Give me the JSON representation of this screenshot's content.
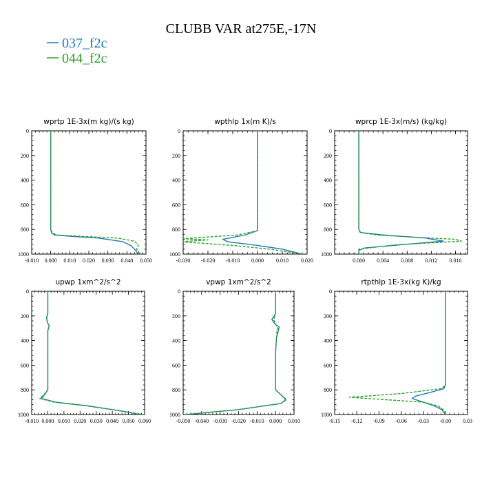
{
  "title": "CLUBB VAR at275E,-17N",
  "legend": [
    {
      "label": "037_f2c",
      "color": "#1f77b4",
      "dash": false
    },
    {
      "label": "044_f2c",
      "color": "#2ca02c",
      "dash": true
    }
  ],
  "chart_data": [
    {
      "type": "line",
      "title": "wprtp  1E-3x(m kg)/(s kg)",
      "xlim": [
        -0.01,
        0.05
      ],
      "ylim": [
        0,
        1000
      ],
      "y_inverted": true,
      "xticks": [
        "-0.010",
        "0.000",
        "0.010",
        "0.020",
        "0.030",
        "0.040",
        "0.050"
      ],
      "yticks": [
        "0",
        "200",
        "400",
        "600",
        "800",
        "1000"
      ],
      "series": [
        {
          "name": "037_f2c",
          "x": [
            0.0,
            0.0,
            0.0,
            0.0,
            0.0005,
            0.002,
            0.01,
            0.025,
            0.038,
            0.042,
            0.044,
            0.046
          ],
          "y": [
            0,
            200,
            500,
            800,
            830,
            845,
            855,
            870,
            900,
            930,
            960,
            1000
          ]
        },
        {
          "name": "044_f2c",
          "x": [
            0.0,
            0.0,
            0.0,
            0.0,
            0.001,
            0.003,
            0.015,
            0.035,
            0.044,
            0.046,
            0.045,
            0.047
          ],
          "y": [
            0,
            200,
            500,
            800,
            830,
            845,
            855,
            870,
            895,
            930,
            960,
            1000
          ]
        }
      ]
    },
    {
      "type": "line",
      "title": "wpthlp  1x(m K)/s",
      "xlim": [
        -0.03,
        0.02
      ],
      "ylim": [
        0,
        1000
      ],
      "y_inverted": true,
      "xticks": [
        "-0.030",
        "-0.020",
        "-0.010",
        "0.000",
        "0.010",
        "0.020"
      ],
      "yticks": [
        "0",
        "200",
        "400",
        "600",
        "800",
        "1000"
      ],
      "series": [
        {
          "name": "037_f2c",
          "x": [
            0.0,
            0.0,
            0.0,
            0.0,
            0.0,
            -0.005,
            -0.014,
            -0.012,
            0.0,
            0.01,
            0.018
          ],
          "y": [
            0,
            200,
            500,
            790,
            810,
            845,
            880,
            900,
            930,
            960,
            1000
          ]
        },
        {
          "name": "044_f2c",
          "x": [
            0.0,
            0.0,
            0.0,
            0.0,
            0.0,
            -0.008,
            -0.03,
            -0.02,
            -0.031,
            -0.01,
            0.005,
            0.018
          ],
          "y": [
            0,
            200,
            500,
            790,
            810,
            845,
            875,
            885,
            900,
            930,
            960,
            1000
          ]
        }
      ]
    },
    {
      "type": "line",
      "title": "wprcp  1E-3x(m/s) (kg/kg)",
      "xlim": [
        -0.004,
        0.018
      ],
      "ylim": [
        0,
        1000
      ],
      "y_inverted": true,
      "xticks": [
        "0.000",
        "0.004",
        "0.008",
        "0.012",
        "0.016"
      ],
      "yticks": [
        "0",
        "200",
        "400",
        "600",
        "800",
        "1000"
      ],
      "series": [
        {
          "name": "037_f2c",
          "x": [
            0.0,
            0.0,
            0.0,
            0.0,
            0.0003,
            0.004,
            0.011,
            0.014,
            0.008,
            0.001,
            0.0,
            0.0
          ],
          "y": [
            0,
            200,
            500,
            800,
            825,
            845,
            870,
            895,
            920,
            950,
            970,
            1000
          ]
        },
        {
          "name": "044_f2c",
          "x": [
            0.0,
            0.0,
            0.0,
            0.0,
            0.0002,
            0.003,
            0.01,
            0.016,
            0.017,
            0.006,
            0.0,
            0.0
          ],
          "y": [
            0,
            200,
            500,
            800,
            825,
            845,
            865,
            880,
            895,
            925,
            960,
            1000
          ]
        }
      ]
    },
    {
      "type": "line",
      "title": "upwp  1xm^2/s^2",
      "xlim": [
        -0.01,
        0.06
      ],
      "ylim": [
        0,
        1000
      ],
      "y_inverted": true,
      "xticks": [
        "-0.010",
        "0.000",
        "0.010",
        "0.020",
        "0.030",
        "0.040",
        "0.050",
        "0.060"
      ],
      "yticks": [
        "0",
        "200",
        "400",
        "600",
        "800",
        "1000"
      ],
      "series": [
        {
          "name": "037_f2c",
          "x": [
            0.0,
            0.0,
            0.0,
            -0.0007,
            0.0,
            0.0008,
            0.0,
            0.0,
            0.0,
            0.0,
            -0.002,
            -0.004,
            0.005,
            0.025,
            0.045,
            0.057
          ],
          "y": [
            0,
            100,
            180,
            220,
            260,
            280,
            320,
            500,
            700,
            800,
            840,
            870,
            900,
            930,
            970,
            1000
          ]
        },
        {
          "name": "044_f2c",
          "x": [
            0.0,
            0.0,
            0.0,
            -0.0009,
            0.0,
            0.001,
            0.0,
            0.0,
            0.0,
            0.0,
            -0.0025,
            -0.005,
            0.004,
            0.024,
            0.045,
            0.059
          ],
          "y": [
            0,
            100,
            180,
            220,
            260,
            280,
            320,
            500,
            700,
            800,
            840,
            870,
            900,
            930,
            970,
            1000
          ]
        }
      ]
    },
    {
      "type": "line",
      "title": "vpwp  1xm^2/s^2",
      "xlim": [
        -0.05,
        0.01
      ],
      "ylim": [
        0,
        1000
      ],
      "y_inverted": true,
      "xticks": [
        "-0.050",
        "-0.040",
        "-0.030",
        "-0.020",
        "-0.010",
        "0.000",
        "0.010"
      ],
      "yticks": [
        "0",
        "200",
        "400",
        "600",
        "800",
        "1000"
      ],
      "series": [
        {
          "name": "037_f2c",
          "x": [
            0.0,
            0.0,
            0.0,
            -0.002,
            0.0,
            0.002,
            0.0005,
            0.0,
            0.0,
            0.0,
            0.003,
            0.0055,
            0.003,
            -0.02,
            -0.048
          ],
          "y": [
            0,
            100,
            180,
            230,
            270,
            290,
            380,
            500,
            700,
            800,
            840,
            880,
            910,
            960,
            1000
          ]
        },
        {
          "name": "044_f2c",
          "x": [
            0.0,
            0.0,
            0.0,
            -0.001,
            0.0,
            0.001,
            0.0005,
            0.0,
            0.0,
            0.0,
            0.003,
            0.006,
            0.003,
            -0.02,
            -0.049
          ],
          "y": [
            0,
            100,
            180,
            230,
            270,
            290,
            380,
            500,
            700,
            800,
            840,
            880,
            910,
            960,
            1000
          ]
        }
      ]
    },
    {
      "type": "line",
      "title": "rtpthlp  1E-3x(kg K)/kg",
      "xlim": [
        -0.15,
        0.03
      ],
      "ylim": [
        0,
        1000
      ],
      "y_inverted": true,
      "xticks": [
        "-0.15",
        "-0.12",
        "-0.09",
        "-0.06",
        "-0.03",
        "-0.00",
        "0.03"
      ],
      "yticks": [
        "0",
        "200",
        "400",
        "600",
        "800",
        "1000"
      ],
      "series": [
        {
          "name": "037_f2c",
          "x": [
            0.0,
            0.0,
            0.0,
            0.0,
            -0.002,
            -0.02,
            -0.04,
            -0.045,
            -0.03,
            -0.015,
            -0.005,
            0.0
          ],
          "y": [
            0,
            200,
            500,
            760,
            790,
            820,
            850,
            870,
            900,
            930,
            960,
            1000
          ]
        },
        {
          "name": "044_f2c",
          "x": [
            0.0,
            0.0,
            0.0,
            0.0,
            -0.005,
            -0.06,
            -0.13,
            -0.08,
            -0.03,
            -0.01,
            -0.003,
            0.0
          ],
          "y": [
            0,
            200,
            500,
            760,
            790,
            830,
            860,
            880,
            900,
            930,
            960,
            1000
          ]
        }
      ]
    }
  ]
}
